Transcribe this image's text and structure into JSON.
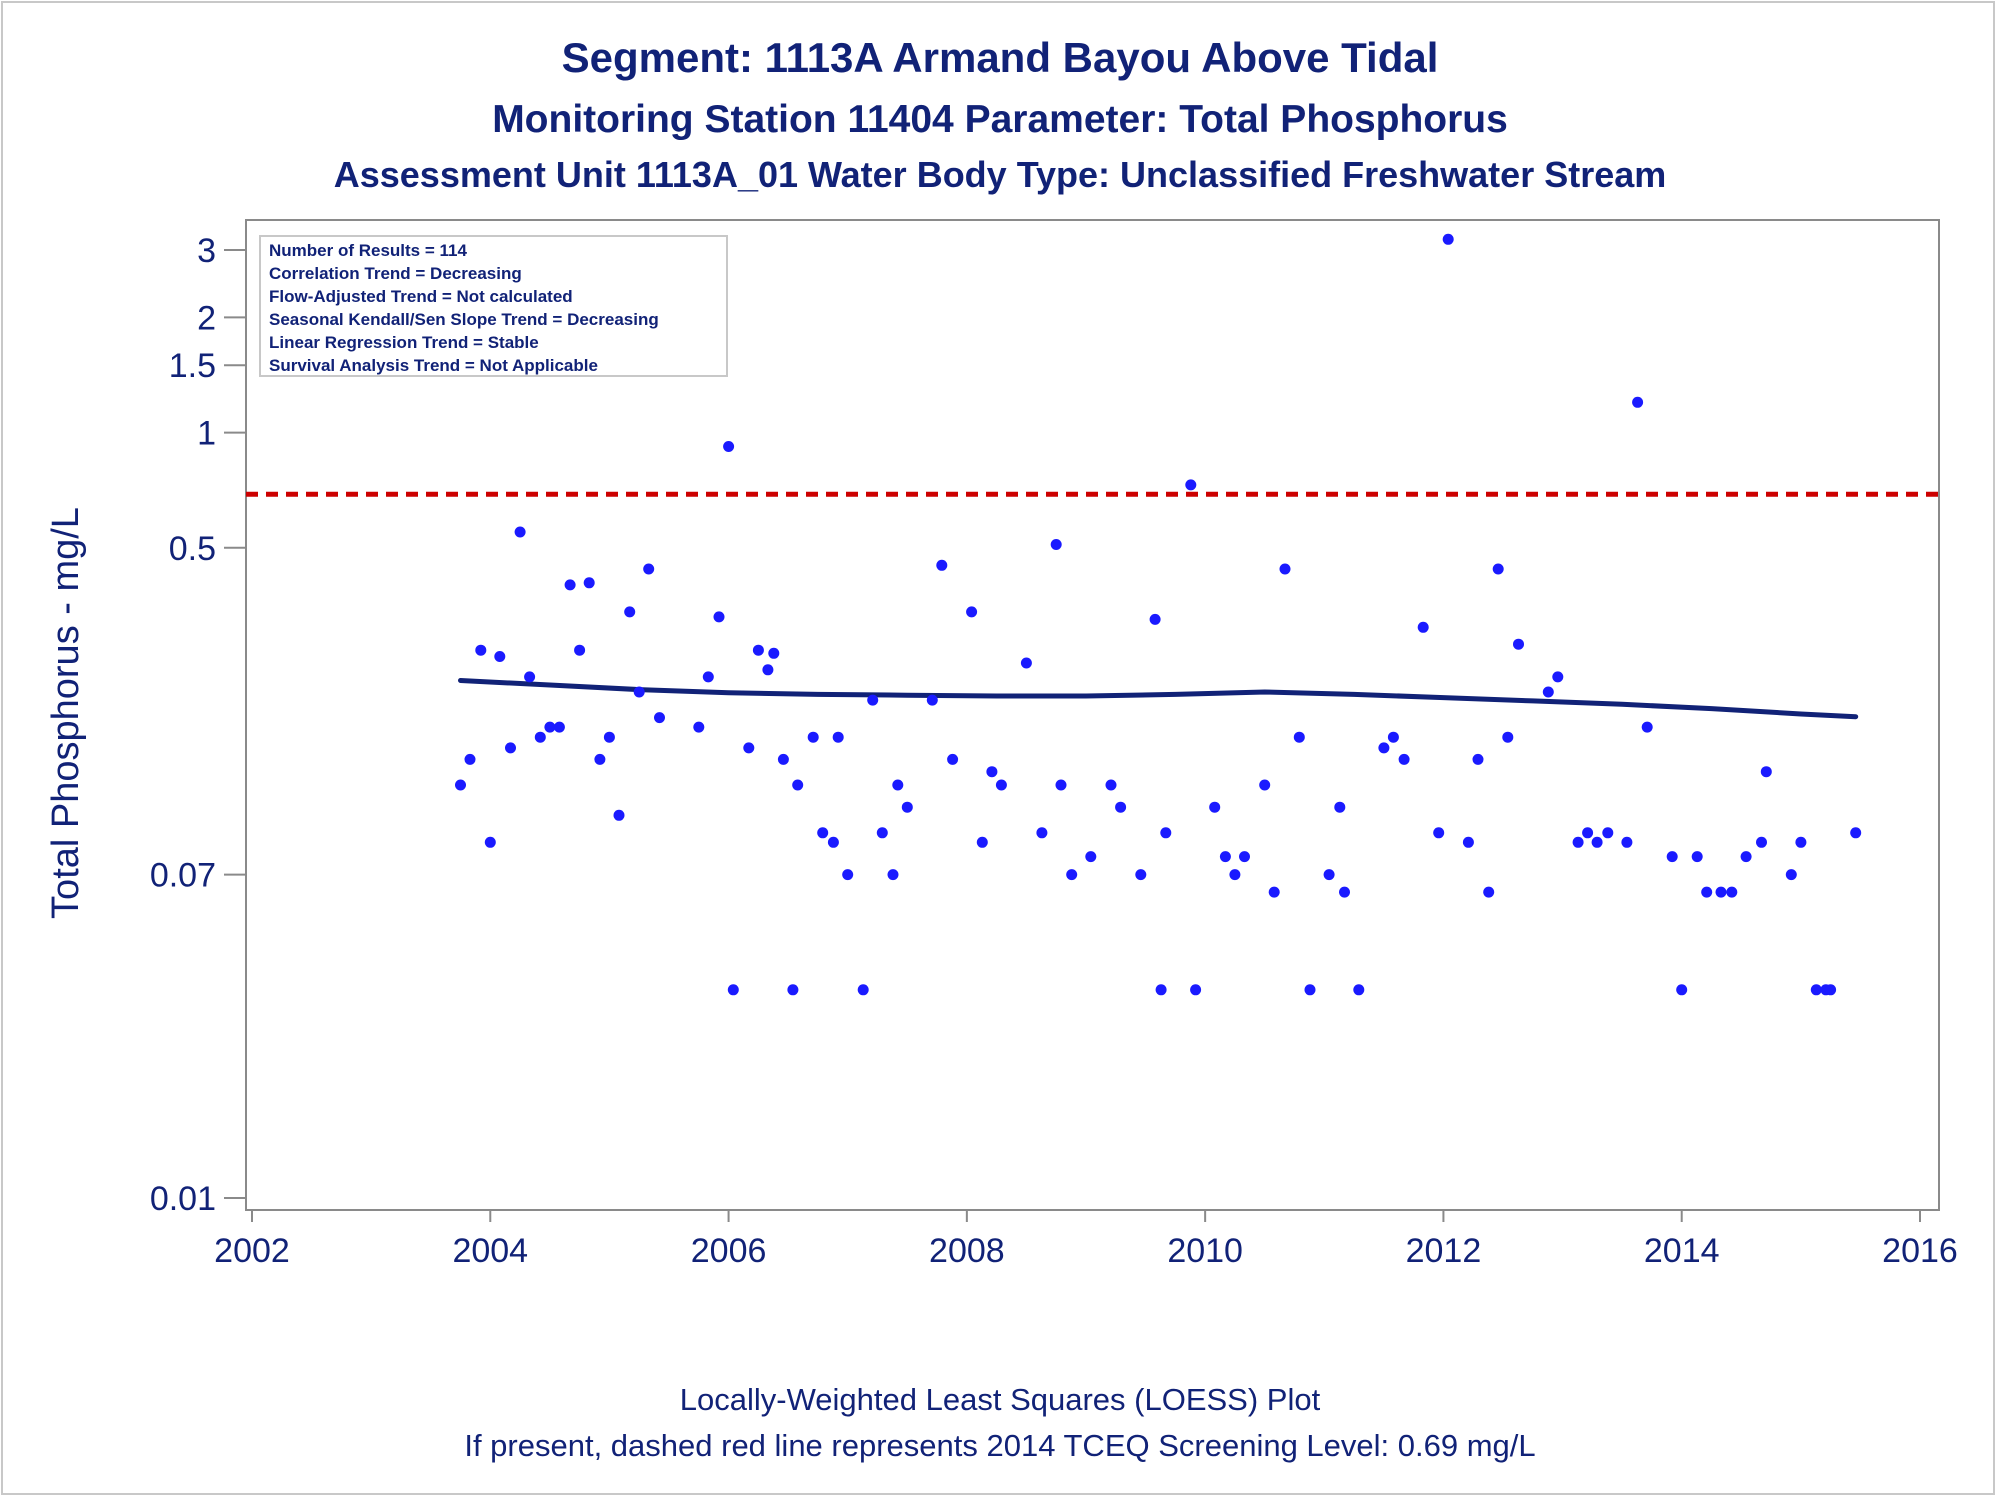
{
  "chart_data": {
    "type": "scatter",
    "title": "Segment: 1113A  Armand Bayou Above Tidal",
    "subtitle": "Monitoring Station 11404 Parameter: Total Phosphorus",
    "subtitle2": "Assessment Unit 1113A_01   Water Body Type: Unclassified Freshwater Stream",
    "xlabel": "",
    "ylabel": "Total Phosphorus - mg/L",
    "x_scale": "linear",
    "y_scale": "log",
    "xlim": [
      2002,
      2016
    ],
    "ylim": [
      0.01,
      3.5
    ],
    "x_ticks": [
      2002,
      2004,
      2006,
      2008,
      2010,
      2012,
      2014,
      2016
    ],
    "x_tick_labels": [
      "2002",
      "2004",
      "2006",
      "2008",
      "2010",
      "2012",
      "2014",
      "2016"
    ],
    "y_ticks": [
      0.01,
      0.07,
      0.5,
      1,
      1.5,
      2,
      3
    ],
    "y_tick_labels": [
      "0.01",
      "0.07",
      "0.5",
      "1",
      "1.5",
      "2",
      "3"
    ],
    "grid": false,
    "stats_box": [
      "Number of Results = 114",
      "Correlation Trend = Decreasing",
      "Flow-Adjusted Trend = Not calculated",
      "Seasonal Kendall/Sen Slope Trend = Decreasing",
      "Linear Regression Trend = Stable",
      "Survival Analysis Trend = Not Applicable"
    ],
    "screening_level": {
      "value": 0.69,
      "color": "#cc0000",
      "style": "dashed"
    },
    "series": [
      {
        "type": "scatter",
        "color": "#1a1aff",
        "points": [
          [
            2003.75,
            0.12
          ],
          [
            2003.83,
            0.14
          ],
          [
            2003.92,
            0.27
          ],
          [
            2004.0,
            0.085
          ],
          [
            2004.08,
            0.26
          ],
          [
            2004.17,
            0.15
          ],
          [
            2004.25,
            0.55
          ],
          [
            2004.33,
            0.23
          ],
          [
            2004.42,
            0.16
          ],
          [
            2004.5,
            0.17
          ],
          [
            2004.58,
            0.17
          ],
          [
            2004.67,
            0.4
          ],
          [
            2004.75,
            0.27
          ],
          [
            2004.83,
            0.405
          ],
          [
            2004.92,
            0.14
          ],
          [
            2005.0,
            0.16
          ],
          [
            2005.08,
            0.1
          ],
          [
            2005.17,
            0.34
          ],
          [
            2005.25,
            0.21
          ],
          [
            2005.33,
            0.44
          ],
          [
            2005.42,
            0.18
          ],
          [
            2005.75,
            0.17
          ],
          [
            2005.83,
            0.23
          ],
          [
            2005.92,
            0.33
          ],
          [
            2006.0,
            0.92
          ],
          [
            2006.04,
            0.035
          ],
          [
            2006.17,
            0.15
          ],
          [
            2006.25,
            0.27
          ],
          [
            2006.33,
            0.24
          ],
          [
            2006.38,
            0.265
          ],
          [
            2006.46,
            0.14
          ],
          [
            2006.54,
            0.035
          ],
          [
            2006.58,
            0.12
          ],
          [
            2006.71,
            0.16
          ],
          [
            2006.79,
            0.09
          ],
          [
            2006.88,
            0.085
          ],
          [
            2006.92,
            0.16
          ],
          [
            2007.0,
            0.07
          ],
          [
            2007.13,
            0.035
          ],
          [
            2007.21,
            0.2
          ],
          [
            2007.29,
            0.09
          ],
          [
            2007.38,
            0.07
          ],
          [
            2007.42,
            0.12
          ],
          [
            2007.5,
            0.105
          ],
          [
            2007.71,
            0.2
          ],
          [
            2007.79,
            0.45
          ],
          [
            2007.88,
            0.14
          ],
          [
            2008.04,
            0.34
          ],
          [
            2008.13,
            0.085
          ],
          [
            2008.21,
            0.13
          ],
          [
            2008.29,
            0.12
          ],
          [
            2008.5,
            0.25
          ],
          [
            2008.63,
            0.09
          ],
          [
            2008.75,
            0.51
          ],
          [
            2008.79,
            0.12
          ],
          [
            2008.88,
            0.07
          ],
          [
            2009.04,
            0.078
          ],
          [
            2009.21,
            0.12
          ],
          [
            2009.29,
            0.105
          ],
          [
            2009.46,
            0.07
          ],
          [
            2009.58,
            0.325
          ],
          [
            2009.63,
            0.035
          ],
          [
            2009.67,
            0.09
          ],
          [
            2009.88,
            0.73
          ],
          [
            2009.92,
            0.035
          ],
          [
            2010.08,
            0.105
          ],
          [
            2010.17,
            0.078
          ],
          [
            2010.25,
            0.07
          ],
          [
            2010.33,
            0.078
          ],
          [
            2010.5,
            0.12
          ],
          [
            2010.58,
            0.063
          ],
          [
            2010.67,
            0.44
          ],
          [
            2010.79,
            0.16
          ],
          [
            2010.88,
            0.035
          ],
          [
            2011.04,
            0.07
          ],
          [
            2011.13,
            0.105
          ],
          [
            2011.17,
            0.063
          ],
          [
            2011.29,
            0.035
          ],
          [
            2011.5,
            0.15
          ],
          [
            2011.58,
            0.16
          ],
          [
            2011.67,
            0.14
          ],
          [
            2011.83,
            0.31
          ],
          [
            2011.96,
            0.09
          ],
          [
            2012.04,
            3.2
          ],
          [
            2012.21,
            0.085
          ],
          [
            2012.29,
            0.14
          ],
          [
            2012.38,
            0.063
          ],
          [
            2012.46,
            0.44
          ],
          [
            2012.54,
            0.16
          ],
          [
            2012.63,
            0.28
          ],
          [
            2012.88,
            0.21
          ],
          [
            2012.96,
            0.23
          ],
          [
            2013.13,
            0.085
          ],
          [
            2013.21,
            0.09
          ],
          [
            2013.29,
            0.085
          ],
          [
            2013.38,
            0.09
          ],
          [
            2013.54,
            0.085
          ],
          [
            2013.63,
            1.2
          ],
          [
            2013.71,
            0.17
          ],
          [
            2013.92,
            0.078
          ],
          [
            2014.0,
            0.035
          ],
          [
            2014.13,
            0.078
          ],
          [
            2014.21,
            0.063
          ],
          [
            2014.33,
            0.063
          ],
          [
            2014.42,
            0.063
          ],
          [
            2014.54,
            0.078
          ],
          [
            2014.67,
            0.085
          ],
          [
            2014.71,
            0.13
          ],
          [
            2014.92,
            0.07
          ],
          [
            2015.0,
            0.085
          ],
          [
            2015.13,
            0.035
          ],
          [
            2015.21,
            0.035
          ],
          [
            2015.25,
            0.035
          ],
          [
            2015.46,
            0.09
          ]
        ]
      },
      {
        "type": "line",
        "color": "#112277",
        "x": [
          2003.75,
          2004.5,
          2005.25,
          2006.0,
          2006.75,
          2007.5,
          2008.25,
          2009.0,
          2009.75,
          2010.5,
          2011.25,
          2012.0,
          2012.75,
          2013.5,
          2014.25,
          2015.0,
          2015.46
        ],
        "y": [
          0.225,
          0.219,
          0.213,
          0.209,
          0.207,
          0.206,
          0.205,
          0.205,
          0.207,
          0.21,
          0.207,
          0.203,
          0.199,
          0.195,
          0.19,
          0.184,
          0.181
        ]
      }
    ]
  },
  "footer": {
    "line1": "Locally-Weighted Least Squares (LOESS) Plot",
    "line2": "If present, dashed red line represents 2014 TCEQ Screening Level: 0.69 mg/L"
  },
  "colors": {
    "text": "#112277",
    "points": "#1a1aff",
    "loess_line": "#112277",
    "screening_line": "#cc0000",
    "axis": "#8a8a8a"
  }
}
